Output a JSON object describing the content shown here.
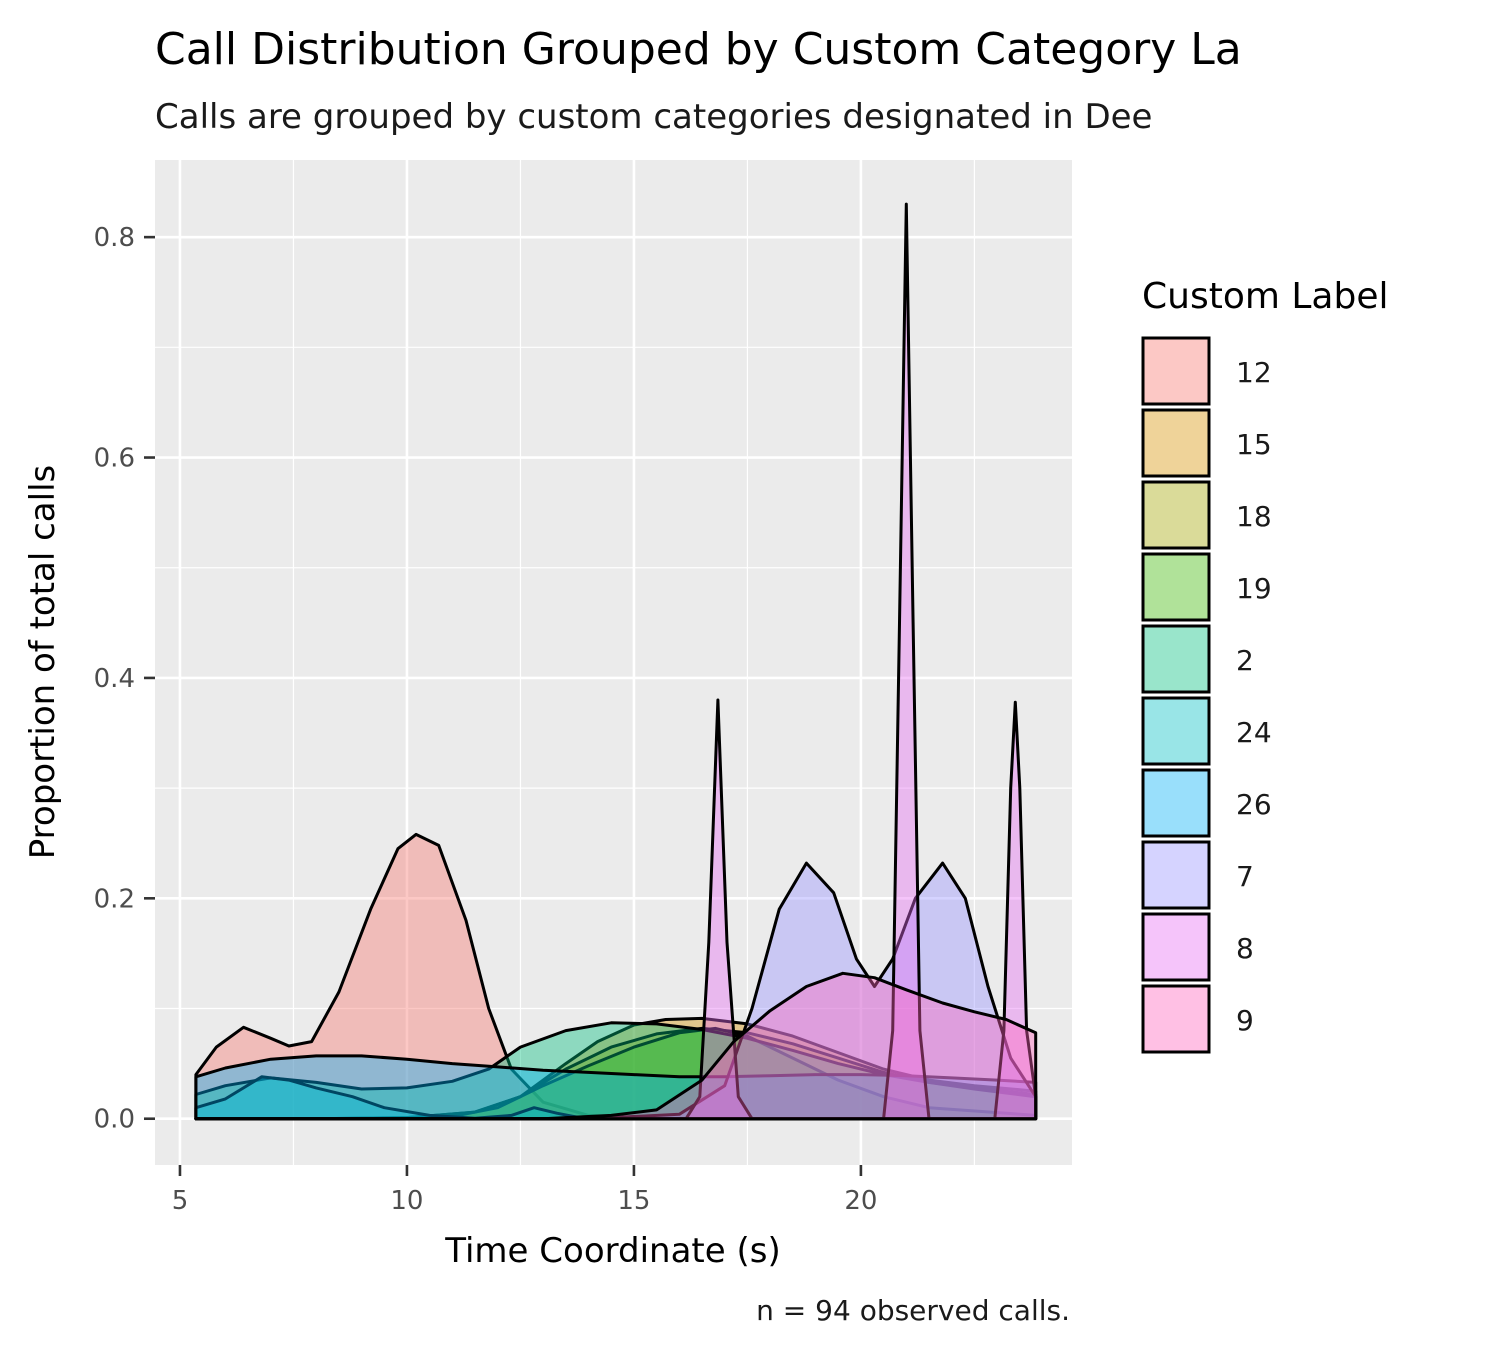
{
  "chart_data": {
    "type": "area",
    "title": "Call Distribution Grouped by Custom Category La",
    "subtitle": "Calls are grouped by custom categories designated in Dee",
    "xlabel": "Time Coordinate (s)",
    "ylabel": "Proportion of total calls",
    "caption": "n = 94 observed calls.",
    "legend_title": "Custom Label",
    "legend_position": "right",
    "grid": true,
    "xlim": [
      4.45,
      24.65
    ],
    "ylim": [
      -0.042,
      0.87
    ],
    "x_ticks": [
      5,
      10,
      15,
      20
    ],
    "x_tick_labels": [
      "5",
      "10",
      "15",
      "20"
    ],
    "y_ticks": [
      0.0,
      0.2,
      0.4,
      0.6,
      0.8
    ],
    "y_tick_labels": [
      "0.0",
      "0.2",
      "0.4",
      "0.6",
      "0.8"
    ],
    "series": [
      {
        "name": "12",
        "color": "#F8766D",
        "points": [
          [
            5.35,
            0.04
          ],
          [
            5.8,
            0.065
          ],
          [
            6.4,
            0.083
          ],
          [
            7,
            0.073
          ],
          [
            7.4,
            0.066
          ],
          [
            7.9,
            0.07
          ],
          [
            8.5,
            0.115
          ],
          [
            9.2,
            0.19
          ],
          [
            9.8,
            0.245
          ],
          [
            10.2,
            0.258
          ],
          [
            10.7,
            0.248
          ],
          [
            11.3,
            0.18
          ],
          [
            11.8,
            0.1
          ],
          [
            12.3,
            0.045
          ],
          [
            13,
            0.015
          ],
          [
            14,
            0.003
          ],
          [
            15,
            0.001
          ],
          [
            17,
            0
          ],
          [
            20,
            0
          ],
          [
            23.85,
            0
          ]
        ]
      },
      {
        "name": "15",
        "color": "#D89000",
        "points": [
          [
            5.35,
            0
          ],
          [
            8,
            0
          ],
          [
            10,
            0.001
          ],
          [
            11.5,
            0.006
          ],
          [
            12.5,
            0.02
          ],
          [
            13.5,
            0.05
          ],
          [
            14.2,
            0.07
          ],
          [
            15,
            0.085
          ],
          [
            15.7,
            0.09
          ],
          [
            16.5,
            0.091
          ],
          [
            17.5,
            0.086
          ],
          [
            18.5,
            0.075
          ],
          [
            19.5,
            0.06
          ],
          [
            20.5,
            0.045
          ],
          [
            21.5,
            0.035
          ],
          [
            22.5,
            0.03
          ],
          [
            23.85,
            0.025
          ]
        ]
      },
      {
        "name": "18",
        "color": "#A3A500",
        "points": [
          [
            5.35,
            0
          ],
          [
            8,
            0
          ],
          [
            10,
            0.001
          ],
          [
            11.5,
            0.006
          ],
          [
            12.5,
            0.02
          ],
          [
            13.5,
            0.045
          ],
          [
            14.5,
            0.065
          ],
          [
            15.5,
            0.077
          ],
          [
            16.5,
            0.082
          ],
          [
            17.5,
            0.078
          ],
          [
            18.5,
            0.068
          ],
          [
            19.5,
            0.055
          ],
          [
            20.5,
            0.042
          ],
          [
            21.5,
            0.033
          ],
          [
            22.5,
            0.028
          ],
          [
            23.85,
            0.022
          ]
        ]
      },
      {
        "name": "19",
        "color": "#39B600",
        "points": [
          [
            5.35,
            0
          ],
          [
            9,
            0
          ],
          [
            11,
            0.002
          ],
          [
            12,
            0.01
          ],
          [
            13,
            0.03
          ],
          [
            14,
            0.048
          ],
          [
            15,
            0.065
          ],
          [
            16,
            0.078
          ],
          [
            16.8,
            0.082
          ],
          [
            17.5,
            0.075
          ],
          [
            18.5,
            0.055
          ],
          [
            19.5,
            0.035
          ],
          [
            20.5,
            0.02
          ],
          [
            21.5,
            0.01
          ],
          [
            23.85,
            0.003
          ]
        ]
      },
      {
        "name": "2",
        "color": "#00BF7D",
        "points": [
          [
            5.35,
            0.022
          ],
          [
            6,
            0.03
          ],
          [
            7,
            0.037
          ],
          [
            8,
            0.033
          ],
          [
            9,
            0.027
          ],
          [
            10,
            0.028
          ],
          [
            11,
            0.034
          ],
          [
            11.8,
            0.045
          ],
          [
            12.5,
            0.065
          ],
          [
            13.5,
            0.08
          ],
          [
            14.5,
            0.087
          ],
          [
            15.5,
            0.086
          ],
          [
            16.5,
            0.081
          ],
          [
            17.5,
            0.073
          ],
          [
            18.5,
            0.062
          ],
          [
            19.5,
            0.05
          ],
          [
            20.5,
            0.04
          ],
          [
            21.5,
            0.033
          ],
          [
            22.5,
            0.027
          ],
          [
            23.85,
            0.02
          ]
        ]
      },
      {
        "name": "24",
        "color": "#00BFC4",
        "points": [
          [
            5.35,
            0.01
          ],
          [
            6,
            0.018
          ],
          [
            6.8,
            0.038
          ],
          [
            7.4,
            0.035
          ],
          [
            8,
            0.028
          ],
          [
            8.8,
            0.02
          ],
          [
            9.5,
            0.01
          ],
          [
            10.5,
            0.003
          ],
          [
            11.5,
            0.0005
          ],
          [
            12.3,
            0.003
          ],
          [
            12.8,
            0.01
          ],
          [
            13.3,
            0.005
          ],
          [
            13.8,
            0.001
          ],
          [
            16,
            0
          ],
          [
            20,
            0
          ],
          [
            23.85,
            0
          ]
        ]
      },
      {
        "name": "26",
        "color": "#00B0F6",
        "points": [
          [
            5.35,
            0.038
          ],
          [
            6,
            0.046
          ],
          [
            7,
            0.054
          ],
          [
            8,
            0.057
          ],
          [
            9,
            0.057
          ],
          [
            10,
            0.054
          ],
          [
            11,
            0.05
          ],
          [
            12,
            0.047
          ],
          [
            13,
            0.044
          ],
          [
            14,
            0.042
          ],
          [
            15,
            0.04
          ],
          [
            16,
            0.038
          ],
          [
            17,
            0.038
          ],
          [
            18,
            0.039
          ],
          [
            19,
            0.04
          ],
          [
            20,
            0.04
          ],
          [
            21,
            0.039
          ],
          [
            22,
            0.037
          ],
          [
            23,
            0.035
          ],
          [
            23.85,
            0.033
          ]
        ]
      },
      {
        "name": "7",
        "color": "#9590FF",
        "points": [
          [
            5.35,
            0
          ],
          [
            14,
            0
          ],
          [
            16,
            0.004
          ],
          [
            17,
            0.03
          ],
          [
            17.6,
            0.1
          ],
          [
            18.2,
            0.19
          ],
          [
            18.8,
            0.232
          ],
          [
            19.4,
            0.205
          ],
          [
            19.9,
            0.145
          ],
          [
            20.3,
            0.12
          ],
          [
            20.7,
            0.145
          ],
          [
            21.2,
            0.2
          ],
          [
            21.8,
            0.232
          ],
          [
            22.3,
            0.2
          ],
          [
            22.8,
            0.12
          ],
          [
            23.3,
            0.055
          ],
          [
            23.85,
            0.02
          ]
        ]
      },
      {
        "name": "8",
        "color": "#E76BF3",
        "points": [
          [
            5.35,
            0
          ],
          [
            16.15,
            0
          ],
          [
            16.45,
            0.02
          ],
          [
            16.65,
            0.16
          ],
          [
            16.85,
            0.38
          ],
          [
            17.05,
            0.16
          ],
          [
            17.3,
            0.02
          ],
          [
            17.6,
            0
          ],
          [
            20.5,
            0
          ],
          [
            20.7,
            0.08
          ],
          [
            20.85,
            0.45
          ],
          [
            21.0,
            0.83
          ],
          [
            21.15,
            0.45
          ],
          [
            21.3,
            0.08
          ],
          [
            21.5,
            0
          ],
          [
            22.95,
            0
          ],
          [
            23.15,
            0.08
          ],
          [
            23.3,
            0.3
          ],
          [
            23.4,
            0.378
          ],
          [
            23.5,
            0.3
          ],
          [
            23.65,
            0.08
          ],
          [
            23.85,
            0.02
          ]
        ]
      },
      {
        "name": "9",
        "color": "#FF62BC",
        "points": [
          [
            5.35,
            0
          ],
          [
            13,
            0
          ],
          [
            14.5,
            0.003
          ],
          [
            15.5,
            0.008
          ],
          [
            16.5,
            0.035
          ],
          [
            17.2,
            0.07
          ],
          [
            18,
            0.098
          ],
          [
            18.8,
            0.12
          ],
          [
            19.6,
            0.132
          ],
          [
            20.3,
            0.128
          ],
          [
            21,
            0.117
          ],
          [
            21.8,
            0.105
          ],
          [
            22.5,
            0.097
          ],
          [
            23.2,
            0.09
          ],
          [
            23.85,
            0.078
          ]
        ]
      }
    ]
  }
}
